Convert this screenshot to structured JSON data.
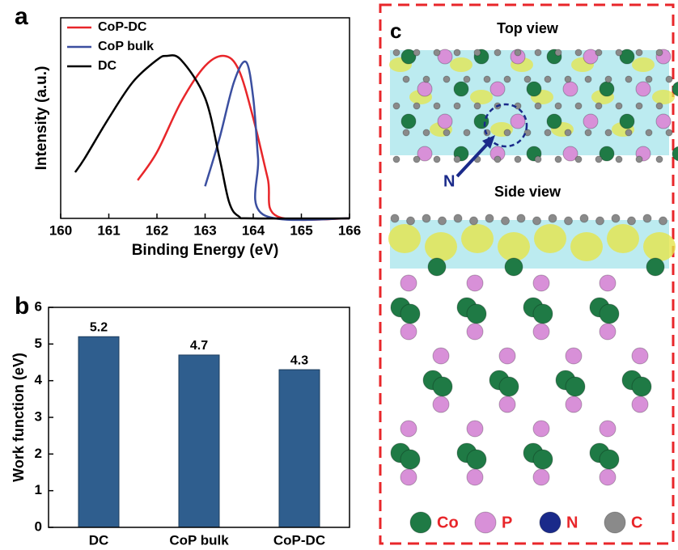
{
  "chart_data": [
    {
      "type": "line",
      "label": "a",
      "xlabel": "Binding Energy (eV)",
      "ylabel": "Intensity (a.u.)",
      "xlim": [
        160,
        166
      ],
      "xticks": [
        160,
        161,
        162,
        163,
        164,
        165,
        166
      ],
      "ylim": [
        0,
        1
      ],
      "legend": "top-left",
      "series": [
        {
          "name": "CoP-DC",
          "color": "#e8262a",
          "x": [
            161.6,
            162,
            162.5,
            163,
            163.4,
            163.7,
            164,
            164.3,
            164.5,
            166
          ],
          "values": [
            0.19,
            0.33,
            0.58,
            0.76,
            0.81,
            0.74,
            0.5,
            0.2,
            0.01,
            0
          ]
        },
        {
          "name": "CoP bulk",
          "color": "#3b4fa0",
          "x": [
            163.0,
            163.3,
            163.6,
            163.85,
            164,
            164.1,
            164.2,
            166
          ],
          "values": [
            0.16,
            0.4,
            0.68,
            0.78,
            0.6,
            0.3,
            0.02,
            0
          ]
        },
        {
          "name": "DC",
          "color": "#000000",
          "x": [
            160.3,
            160.5,
            161,
            161.5,
            162,
            162.2,
            162.5,
            163,
            163.3,
            163.5,
            163.7,
            164,
            166
          ],
          "values": [
            0.23,
            0.3,
            0.5,
            0.68,
            0.79,
            0.81,
            0.79,
            0.6,
            0.3,
            0.08,
            0.01,
            0,
            0
          ]
        }
      ]
    },
    {
      "type": "bar",
      "label": "b",
      "ylabel": "Work function (eV)",
      "categories": [
        "DC",
        "CoP bulk",
        "CoP-DC"
      ],
      "values": [
        5.2,
        4.7,
        4.3
      ],
      "color": "#2f5e8e",
      "ylim": [
        0,
        6
      ],
      "yticks": [
        0,
        1,
        2,
        3,
        4,
        5,
        6
      ]
    }
  ],
  "panel_c": {
    "label": "c",
    "top_view": "Top view",
    "side_view": "Side view",
    "arrow_label": "N",
    "legend": [
      "Co",
      "P",
      "N",
      "C"
    ]
  }
}
